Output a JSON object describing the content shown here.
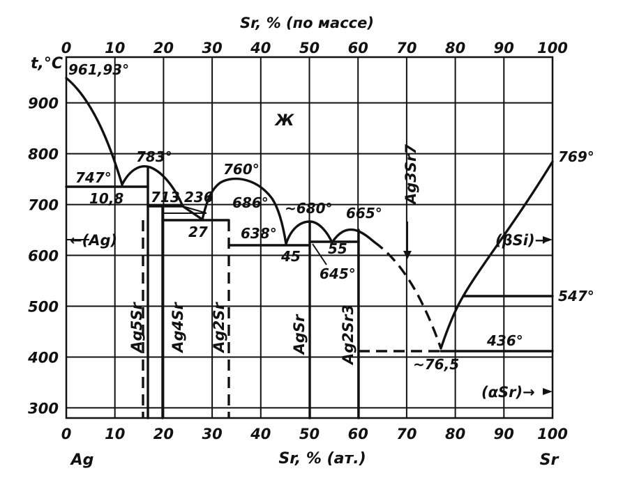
{
  "top_axis": {
    "title": "Sr, %  (по массе)",
    "ticks": [
      "0",
      "10",
      "20",
      "30",
      "40",
      "50",
      "60",
      "70",
      "80",
      "90",
      "100"
    ]
  },
  "bottom_axis": {
    "title": "Sr, %  (ат.)",
    "ticks": [
      "0",
      "10",
      "20",
      "30",
      "40",
      "50",
      "60",
      "70",
      "80",
      "90",
      "100"
    ],
    "left_end": "Ag",
    "right_end": "Sr"
  },
  "y_axis": {
    "title": "t,°C",
    "ticks": [
      "900",
      "800",
      "700",
      "600",
      "500",
      "400",
      "300"
    ],
    "range": [
      280,
      990
    ]
  },
  "phase_labels": {
    "liquid": "Ж",
    "ag_phase": "←(Ag)",
    "beta_sr": "(βSi)→",
    "alpha_sr": "(αSr)→"
  },
  "compounds": {
    "ag5sr": "Ag5Sr",
    "ag4sr": "Ag4Sr",
    "ag2sr": "Ag2Sr",
    "agsr": "AgSr",
    "ag2sr3": "Ag2Sr3",
    "ag3sr7": "Ag3Sr7"
  },
  "annotations": {
    "t_961": "961,93°",
    "t_783": "783°",
    "t_747": "747°",
    "c_10_8": "10,8",
    "t_713": "713",
    "t_236": "236",
    "t_760": "760°",
    "t_686": "686°",
    "c_27": "27",
    "t_680": "~680°",
    "t_665": "665°",
    "t_638": "638°",
    "c_45": "45",
    "c_55": "55",
    "t_645": "645°",
    "t_769": "769°",
    "t_547": "547°",
    "t_436": "436°",
    "c_76_5": "~76,5"
  }
}
